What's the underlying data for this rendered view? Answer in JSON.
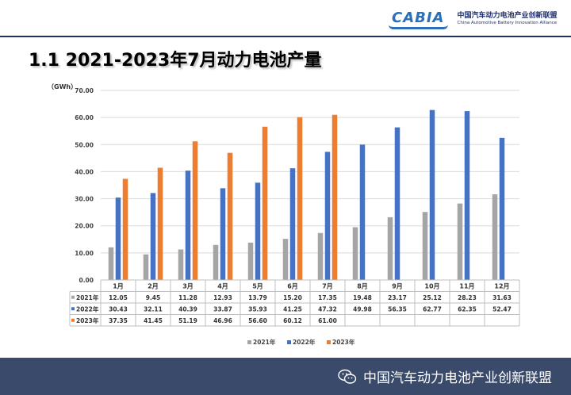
{
  "header": {
    "logo_mark": "CABIA",
    "org_name_cn": "中国汽车动力电池产业创新联盟",
    "org_name_en": "China Automotive Battery Innovation Alliance"
  },
  "slide": {
    "title": "1.1  2021-2023年7月动力电池产量"
  },
  "footer": {
    "brand_text": "中国汽车动力电池产业创新联盟"
  },
  "colors": {
    "2021": "#a5a5a5",
    "2022": "#4472c4",
    "2023": "#ed7d31",
    "footer_bg": "#3a4a6b",
    "header_rule": "#1f2f6b"
  },
  "chart_data": {
    "type": "bar",
    "title": "",
    "ylabel": "（GWh）",
    "xlabel": "",
    "ylim": [
      0,
      70
    ],
    "yticks": [
      "0.00",
      "10.00",
      "20.00",
      "30.00",
      "40.00",
      "50.00",
      "60.00",
      "70.00"
    ],
    "categories": [
      "1月",
      "2月",
      "3月",
      "4月",
      "5月",
      "6月",
      "7月",
      "8月",
      "9月",
      "10月",
      "11月",
      "12月"
    ],
    "series": [
      {
        "name": "2021年",
        "legend": "2021年",
        "color_key": "2021",
        "values": [
          12.05,
          9.45,
          11.28,
          12.93,
          13.79,
          15.2,
          17.35,
          19.48,
          23.17,
          25.12,
          28.23,
          31.63
        ],
        "labels": [
          "12.05",
          "9.45",
          "11.28",
          "12.93",
          "13.79",
          "15.20",
          "17.35",
          "19.48",
          "23.17",
          "25.12",
          "28.23",
          "31.63"
        ]
      },
      {
        "name": "2022年",
        "legend": "2022年",
        "color_key": "2022",
        "values": [
          30.43,
          32.11,
          40.39,
          33.87,
          35.93,
          41.25,
          47.32,
          49.98,
          56.35,
          62.77,
          62.35,
          52.47
        ],
        "labels": [
          "30.43",
          "32.11",
          "40.39",
          "33.87",
          "35.93",
          "41.25",
          "47.32",
          "49.98",
          "56.35",
          "62.77",
          "62.35",
          "52.47"
        ]
      },
      {
        "name": "2023年",
        "legend": "2023年",
        "color_key": "2023",
        "values": [
          37.35,
          41.45,
          51.19,
          46.96,
          56.6,
          60.12,
          61.0,
          null,
          null,
          null,
          null,
          null
        ],
        "labels": [
          "37.35",
          "41.45",
          "51.19",
          "46.96",
          "56.60",
          "60.12",
          "61.00",
          "",
          "",
          "",
          "",
          ""
        ]
      }
    ],
    "grid": true,
    "legend_position": "bottom",
    "data_table": true
  }
}
